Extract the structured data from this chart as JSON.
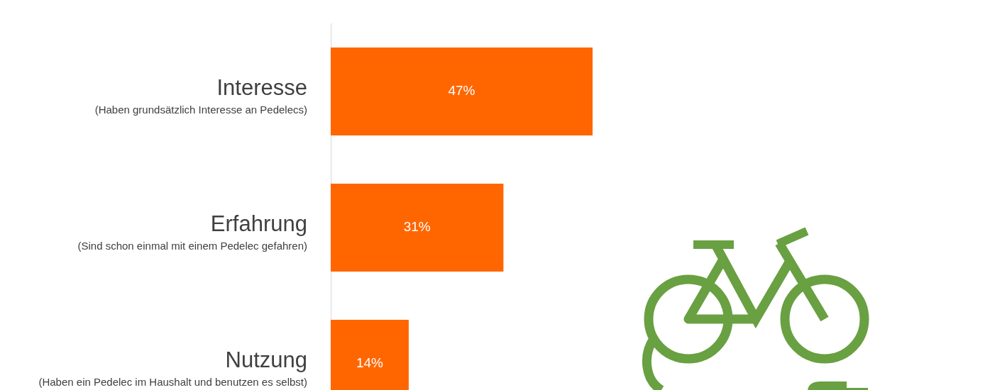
{
  "chart_data": {
    "type": "bar",
    "orientation": "horizontal",
    "categories": [
      "Interesse\n(Haben grundsätzlich Interesse an Pedelecs)",
      "Erfahrung\n(Sind schon einmal mit einem Pedelec gefahren)",
      "Nutzung\n(Haben ein Pedelec im Haushalt und benutzen es selbst)"
    ],
    "values": [
      47,
      31,
      14
    ],
    "color": "#ff6600",
    "value_labels": [
      "47%",
      "31%",
      "14%"
    ],
    "tick_labels": "y"
  }
}
